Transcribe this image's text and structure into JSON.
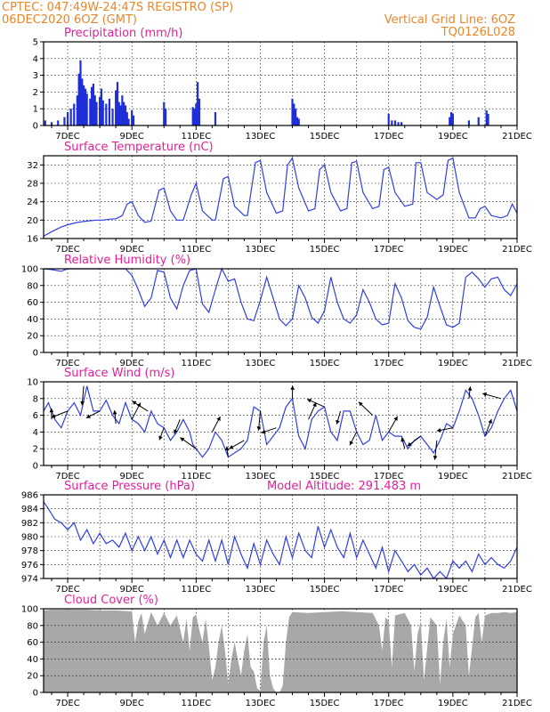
{
  "header": {
    "line1_left": "CPTEC:    047:49W-24:47S   REGISTRO (SP)",
    "line2_left": "06DEC2020  6OZ  (GMT)",
    "line2_right": "Vertical Grid Line: 6OZ",
    "line3_right": "TQ0126L028"
  },
  "x_tick_labels": [
    "7DEC",
    "9DEC",
    "11DEC",
    "13DEC",
    "15DEC",
    "17DEC",
    "19DEC",
    "21DEC"
  ],
  "chart_data": [
    {
      "id": "precipitation",
      "type": "bar",
      "title": "Precipitation (mm/h)",
      "x_range_days": [
        6.25,
        21.0
      ],
      "ylim": [
        0,
        5
      ],
      "yticks": [
        0,
        1,
        2,
        3,
        4,
        5
      ],
      "grid": true,
      "events": [
        [
          6.3,
          0.3
        ],
        [
          6.5,
          0.2
        ],
        [
          6.7,
          0.3
        ],
        [
          6.9,
          0.5
        ],
        [
          7.0,
          0.8
        ],
        [
          7.1,
          1.0
        ],
        [
          7.2,
          1.3
        ],
        [
          7.3,
          1.8
        ],
        [
          7.35,
          3.1
        ],
        [
          7.4,
          3.9
        ],
        [
          7.45,
          2.8
        ],
        [
          7.5,
          2.4
        ],
        [
          7.55,
          2.2
        ],
        [
          7.6,
          1.9
        ],
        [
          7.7,
          1.6
        ],
        [
          7.75,
          2.3
        ],
        [
          7.8,
          2.5
        ],
        [
          7.85,
          1.8
        ],
        [
          7.9,
          1.4
        ],
        [
          8.0,
          1.7
        ],
        [
          8.05,
          2.2
        ],
        [
          8.1,
          1.5
        ],
        [
          8.2,
          1.3
        ],
        [
          8.3,
          1.6
        ],
        [
          8.4,
          1.0
        ],
        [
          8.5,
          2.1
        ],
        [
          8.55,
          2.6
        ],
        [
          8.6,
          1.4
        ],
        [
          8.65,
          1.2
        ],
        [
          8.7,
          1.8
        ],
        [
          8.75,
          1.4
        ],
        [
          8.8,
          1.2
        ],
        [
          8.85,
          0.8
        ],
        [
          8.9,
          0.4
        ],
        [
          9.0,
          0.9
        ],
        [
          9.05,
          0.6
        ],
        [
          10.0,
          1.4
        ],
        [
          10.05,
          1.0
        ],
        [
          10.9,
          1.1
        ],
        [
          10.95,
          1.0
        ],
        [
          11.0,
          1.3
        ],
        [
          11.05,
          2.6
        ],
        [
          11.1,
          1.6
        ],
        [
          11.6,
          0.8
        ],
        [
          14.0,
          1.6
        ],
        [
          14.05,
          1.3
        ],
        [
          14.1,
          1.0
        ],
        [
          14.15,
          0.5
        ],
        [
          14.2,
          0.4
        ],
        [
          17.0,
          0.7
        ],
        [
          17.1,
          0.3
        ],
        [
          17.2,
          0.3
        ],
        [
          17.3,
          0.2
        ],
        [
          17.4,
          0.2
        ],
        [
          18.9,
          0.5
        ],
        [
          18.95,
          0.8
        ],
        [
          19.0,
          0.7
        ],
        [
          19.5,
          0.3
        ],
        [
          19.8,
          0.5
        ],
        [
          20.05,
          0.9
        ],
        [
          20.1,
          0.7
        ]
      ]
    },
    {
      "id": "temperature",
      "type": "line",
      "title": "Surface Temperature (nC)",
      "x_range_days": [
        6.25,
        21.0
      ],
      "ylim": [
        16,
        34
      ],
      "yticks": [
        16,
        20,
        24,
        28,
        32
      ],
      "grid": true,
      "x": [
        6.25,
        6.5,
        6.8,
        7.0,
        7.3,
        7.6,
        7.9,
        8.1,
        8.3,
        8.5,
        8.7,
        8.85,
        9.0,
        9.2,
        9.4,
        9.6,
        9.85,
        10.0,
        10.2,
        10.4,
        10.6,
        10.85,
        11.0,
        11.2,
        11.5,
        11.6,
        11.85,
        12.0,
        12.2,
        12.5,
        12.6,
        12.85,
        13.0,
        13.2,
        13.5,
        13.7,
        13.85,
        14.0,
        14.2,
        14.5,
        14.7,
        14.85,
        15.0,
        15.2,
        15.5,
        15.7,
        15.85,
        16.0,
        16.2,
        16.5,
        16.7,
        16.85,
        17.0,
        17.2,
        17.5,
        17.75,
        17.85,
        18.0,
        18.2,
        18.5,
        18.7,
        18.85,
        19.0,
        19.2,
        19.5,
        19.7,
        19.85,
        20.0,
        20.2,
        20.5,
        20.7,
        20.85,
        21.0
      ],
      "values": [
        16.5,
        17.5,
        18.5,
        19.0,
        19.5,
        19.8,
        20.0,
        20.0,
        20.2,
        20.3,
        21.0,
        23.5,
        24.0,
        21.0,
        19.5,
        19.8,
        26.5,
        27.0,
        22.0,
        20.0,
        20.0,
        25.5,
        28.0,
        22.0,
        20.0,
        20.0,
        29.0,
        29.5,
        23.0,
        21.0,
        21.0,
        32.5,
        33.0,
        26.0,
        21.5,
        22.0,
        32.0,
        33.5,
        27.0,
        22.0,
        22.5,
        31.0,
        32.0,
        26.0,
        22.0,
        22.5,
        32.5,
        32.8,
        26.0,
        22.5,
        23.0,
        31.0,
        31.5,
        26.0,
        23.0,
        23.5,
        32.5,
        32.5,
        26.0,
        24.5,
        25.5,
        33.0,
        33.5,
        26.0,
        20.5,
        20.5,
        22.5,
        23.0,
        21.0,
        20.5,
        21.0,
        23.5,
        21.5
      ]
    },
    {
      "id": "humidity",
      "type": "line",
      "title": "Relative Humidity (%)",
      "x_range_days": [
        6.25,
        21.0
      ],
      "ylim": [
        0,
        100
      ],
      "yticks": [
        0,
        20,
        40,
        60,
        80,
        100
      ],
      "grid": true,
      "x": [
        6.25,
        6.5,
        6.8,
        7.0,
        7.4,
        7.8,
        8.1,
        8.5,
        8.8,
        9.0,
        9.2,
        9.4,
        9.6,
        9.8,
        10.0,
        10.2,
        10.4,
        10.6,
        10.8,
        11.0,
        11.2,
        11.4,
        11.6,
        11.8,
        12.0,
        12.2,
        12.4,
        12.6,
        12.8,
        13.0,
        13.2,
        13.4,
        13.6,
        13.8,
        14.0,
        14.2,
        14.4,
        14.6,
        14.8,
        15.0,
        15.2,
        15.4,
        15.6,
        15.8,
        16.0,
        16.2,
        16.4,
        16.6,
        16.8,
        17.0,
        17.2,
        17.4,
        17.6,
        17.8,
        18.0,
        18.2,
        18.4,
        18.6,
        18.8,
        19.0,
        19.2,
        19.4,
        19.6,
        19.8,
        20.0,
        20.2,
        20.4,
        20.6,
        20.8,
        21.0
      ],
      "values": [
        100,
        99,
        97,
        100,
        100,
        100,
        100,
        100,
        100,
        92,
        75,
        55,
        65,
        98,
        96,
        65,
        52,
        80,
        98,
        100,
        58,
        48,
        75,
        100,
        85,
        88,
        60,
        40,
        38,
        62,
        90,
        65,
        40,
        32,
        40,
        80,
        65,
        42,
        35,
        50,
        90,
        60,
        40,
        35,
        45,
        75,
        60,
        40,
        33,
        35,
        82,
        65,
        38,
        30,
        28,
        42,
        78,
        55,
        33,
        30,
        35,
        90,
        96,
        88,
        78,
        88,
        90,
        75,
        68,
        82
      ]
    },
    {
      "id": "wind",
      "type": "line",
      "title": "Surface Wind (m/s)",
      "x_range_days": [
        6.25,
        21.0
      ],
      "ylim": [
        0,
        10
      ],
      "yticks": [
        0,
        2,
        4,
        6,
        8,
        10
      ],
      "grid": true,
      "x": [
        6.25,
        6.4,
        6.6,
        6.8,
        7.0,
        7.2,
        7.4,
        7.6,
        7.8,
        8.0,
        8.2,
        8.4,
        8.6,
        8.8,
        9.0,
        9.2,
        9.4,
        9.6,
        9.8,
        10.0,
        10.2,
        10.4,
        10.6,
        10.8,
        10.9,
        11.0,
        11.2,
        11.4,
        11.6,
        11.8,
        12.0,
        12.2,
        12.4,
        12.6,
        12.8,
        13.0,
        13.2,
        13.4,
        13.6,
        13.8,
        14.0,
        14.2,
        14.4,
        14.6,
        14.8,
        15.0,
        15.2,
        15.4,
        15.6,
        15.8,
        16.0,
        16.2,
        16.4,
        16.6,
        16.8,
        17.0,
        17.2,
        17.4,
        17.6,
        17.8,
        18.0,
        18.2,
        18.4,
        18.6,
        18.8,
        19.0,
        19.2,
        19.4,
        19.6,
        19.8,
        20.0,
        20.2,
        20.4,
        20.6,
        20.8,
        21.0
      ],
      "values": [
        6.5,
        7.5,
        5.5,
        4.5,
        6.5,
        7.5,
        6.0,
        9.5,
        6.5,
        6.5,
        7.8,
        6.0,
        5.0,
        7.5,
        5.5,
        5.0,
        4.0,
        6.5,
        5.0,
        4.5,
        3.0,
        4.0,
        5.5,
        4.0,
        2.5,
        2.0,
        1.0,
        2.0,
        4.0,
        3.0,
        1.0,
        1.5,
        2.0,
        3.0,
        7.0,
        6.5,
        2.5,
        3.5,
        4.5,
        7.0,
        8.0,
        3.5,
        2.0,
        5.5,
        6.5,
        7.0,
        4.0,
        3.0,
        6.5,
        6.5,
        4.0,
        2.5,
        3.0,
        6.0,
        3.0,
        4.0,
        3.5,
        3.5,
        2.0,
        3.0,
        3.5,
        2.5,
        1.5,
        3.0,
        5.0,
        4.5,
        6.5,
        9.0,
        8.0,
        6.0,
        3.5,
        4.5,
        6.5,
        8.0,
        9.0,
        6.5
      ]
    },
    {
      "id": "pressure",
      "type": "line",
      "title": "Surface Pressure (hPa)",
      "annotation": "Model Altitude: 291.483 m",
      "x_range_days": [
        6.25,
        21.0
      ],
      "ylim": [
        974,
        986
      ],
      "yticks": [
        974,
        976,
        978,
        980,
        982,
        984,
        986
      ],
      "grid": true,
      "x": [
        6.25,
        6.4,
        6.6,
        6.8,
        7.0,
        7.2,
        7.4,
        7.6,
        7.8,
        8.0,
        8.2,
        8.4,
        8.6,
        8.8,
        9.0,
        9.2,
        9.4,
        9.6,
        9.8,
        10.0,
        10.2,
        10.4,
        10.6,
        10.8,
        11.0,
        11.2,
        11.4,
        11.6,
        11.8,
        12.0,
        12.2,
        12.4,
        12.6,
        12.8,
        13.0,
        13.2,
        13.4,
        13.6,
        13.8,
        14.0,
        14.2,
        14.4,
        14.6,
        14.8,
        15.0,
        15.2,
        15.4,
        15.6,
        15.8,
        16.0,
        16.2,
        16.4,
        16.6,
        16.8,
        17.0,
        17.2,
        17.4,
        17.6,
        17.8,
        18.0,
        18.2,
        18.4,
        18.6,
        18.8,
        19.0,
        19.2,
        19.4,
        19.6,
        19.8,
        20.0,
        20.2,
        20.4,
        20.6,
        20.8,
        21.0
      ],
      "values": [
        985.0,
        984.0,
        982.5,
        982.0,
        981.0,
        982.0,
        979.5,
        981.0,
        979.0,
        980.5,
        979.0,
        979.5,
        978.5,
        980.5,
        978.0,
        980.0,
        978.0,
        980.0,
        977.5,
        979.5,
        977.0,
        979.5,
        977.0,
        979.5,
        977.5,
        976.5,
        979.5,
        976.5,
        979.5,
        976.0,
        980.0,
        977.5,
        975.5,
        979.0,
        976.0,
        979.5,
        977.5,
        976.0,
        980.0,
        977.0,
        980.5,
        978.0,
        977.0,
        981.5,
        978.5,
        981.0,
        978.5,
        977.0,
        980.5,
        977.0,
        979.5,
        977.5,
        975.5,
        978.5,
        975.0,
        978.0,
        976.5,
        975.0,
        976.0,
        974.5,
        975.5,
        974.0,
        975.0,
        974.0,
        976.5,
        975.5,
        976.5,
        975.0,
        977.5,
        976.0,
        977.0,
        976.0,
        975.5,
        976.5,
        978.5
      ]
    },
    {
      "id": "cloud",
      "type": "area",
      "title": "Cloud Cover (%)",
      "x_range_days": [
        6.25,
        21.0
      ],
      "ylim": [
        0,
        100
      ],
      "yticks": [
        0,
        20,
        40,
        60,
        80,
        100
      ],
      "grid": true,
      "x": [
        6.25,
        6.5,
        7.0,
        7.5,
        8.0,
        8.5,
        8.9,
        9.0,
        9.1,
        9.2,
        9.3,
        9.4,
        9.6,
        9.8,
        10.0,
        10.2,
        10.4,
        10.6,
        10.7,
        10.8,
        10.9,
        11.0,
        11.1,
        11.2,
        11.3,
        11.4,
        11.5,
        11.6,
        11.7,
        11.8,
        11.9,
        12.0,
        12.1,
        12.2,
        12.4,
        12.5,
        12.6,
        12.7,
        12.8,
        12.9,
        13.0,
        13.1,
        13.2,
        13.3,
        13.4,
        13.5,
        13.6,
        13.7,
        13.8,
        13.9,
        14.0,
        14.5,
        15.0,
        15.5,
        16.0,
        16.5,
        16.7,
        16.8,
        16.9,
        17.0,
        17.1,
        17.2,
        17.5,
        17.7,
        17.8,
        17.9,
        18.0,
        18.1,
        18.3,
        18.5,
        18.6,
        18.7,
        18.8,
        18.9,
        19.0,
        19.2,
        19.4,
        19.5,
        19.6,
        19.7,
        19.8,
        19.9,
        20.0,
        20.2,
        20.4,
        20.6,
        20.8,
        21.0
      ],
      "values": [
        98,
        99,
        99,
        99,
        98,
        98,
        97,
        97,
        60,
        85,
        95,
        70,
        96,
        80,
        95,
        80,
        92,
        60,
        88,
        50,
        90,
        93,
        75,
        60,
        88,
        55,
        15,
        30,
        60,
        80,
        50,
        10,
        40,
        60,
        20,
        50,
        70,
        30,
        25,
        5,
        2,
        60,
        80,
        20,
        5,
        0,
        0,
        8,
        60,
        90,
        96,
        95,
        96,
        97,
        96,
        95,
        80,
        50,
        90,
        85,
        30,
        92,
        95,
        80,
        25,
        70,
        85,
        15,
        90,
        80,
        10,
        60,
        88,
        30,
        70,
        92,
        80,
        20,
        55,
        90,
        95,
        60,
        92,
        95,
        95,
        96,
        95,
        96
      ]
    }
  ]
}
